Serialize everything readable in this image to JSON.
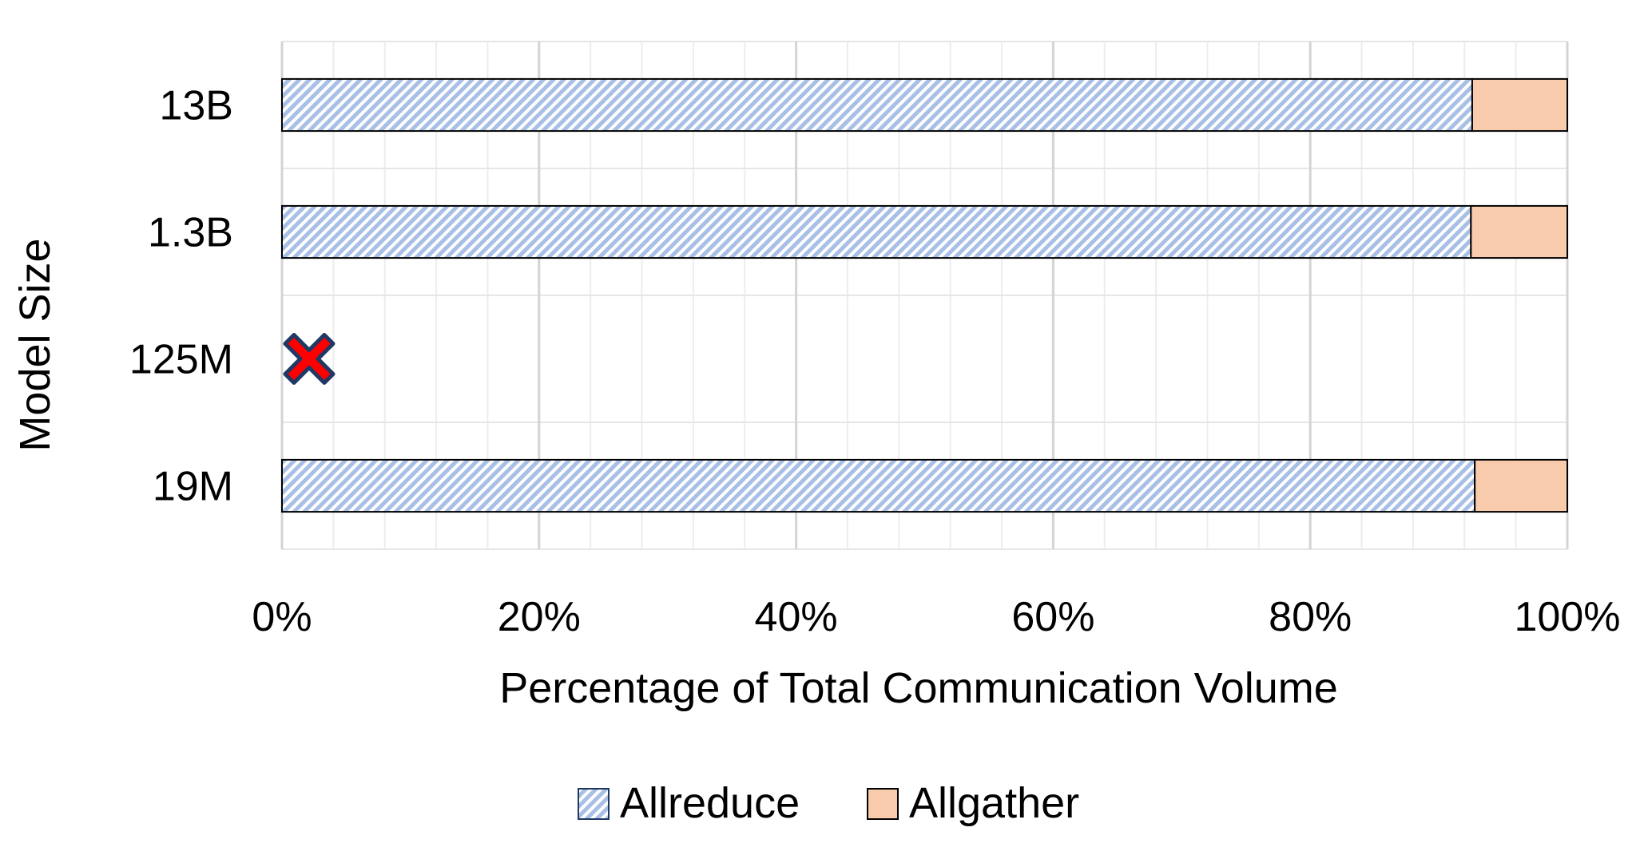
{
  "chart_data": {
    "type": "bar",
    "orientation": "horizontal",
    "stacked": true,
    "normalized": true,
    "categories": [
      "13B",
      "1.3B",
      "125M",
      "19M"
    ],
    "series": [
      {
        "name": "Allreduce",
        "values": [
          92.6,
          92.5,
          null,
          92.8
        ],
        "color": "#a8bfe6",
        "fill": "diagonal-hatch"
      },
      {
        "name": "Allgather",
        "values": [
          7.4,
          7.5,
          null,
          7.2
        ],
        "color": "#f8cbad",
        "fill": "solid"
      }
    ],
    "missing_categories": [
      {
        "category": "125M",
        "marker": "x-icon",
        "color": "#ff0000",
        "outline": "#1f3864"
      }
    ],
    "xlabel": "Percentage of Total Communication Volume",
    "ylabel": "Model Size",
    "xlim": [
      0,
      100
    ],
    "xticks": [
      0,
      20,
      40,
      60,
      80,
      100
    ],
    "xtick_labels": [
      "0%",
      "20%",
      "40%",
      "60%",
      "80%",
      "100%"
    ],
    "grid": true,
    "minor_grid": true,
    "legend": {
      "position": "bottom",
      "entries": [
        "Allreduce",
        "Allgather"
      ]
    }
  }
}
